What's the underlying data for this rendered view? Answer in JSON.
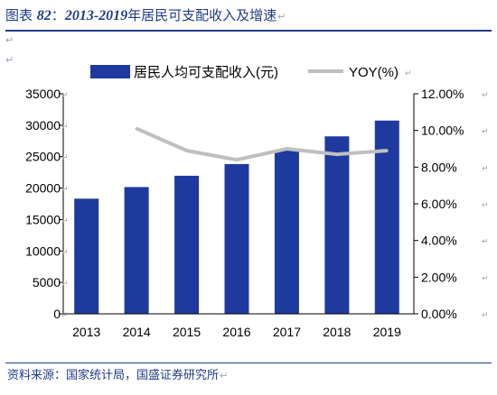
{
  "header": {
    "prefix": "图表",
    "number": "82",
    "separator": "：",
    "years": "2013-2019",
    "text": "年居民可支配收入及增速"
  },
  "footer": {
    "source": "资料来源：国家统计局，国盛证券研究所"
  },
  "paragraph_mark": "↵",
  "chart_data": {
    "type": "bar",
    "title": "",
    "categories": [
      "2013",
      "2014",
      "2015",
      "2016",
      "2017",
      "2018",
      "2019"
    ],
    "series": [
      {
        "name": "居民人均可支配收入(元)",
        "type": "bar",
        "axis": "left",
        "values": [
          18311,
          20167,
          21966,
          23821,
          25974,
          28228,
          30733
        ]
      },
      {
        "name": "YOY(%)",
        "type": "line",
        "axis": "right",
        "values": [
          null,
          10.1,
          8.9,
          8.4,
          9.0,
          8.7,
          8.9
        ]
      }
    ],
    "y_left": {
      "min": 0,
      "max": 35000,
      "ticks": [
        "0",
        "5000",
        "10000",
        "15000",
        "20000",
        "25000",
        "30000",
        "35000"
      ]
    },
    "y_right": {
      "min": 0,
      "max": 12,
      "ticks": [
        "0.00%",
        "2.00%",
        "4.00%",
        "6.00%",
        "8.00%",
        "10.00%",
        "12.00%"
      ]
    },
    "legend_position": "top",
    "grid": false,
    "colors": {
      "bar": "#1f3a9e",
      "line": "#bfbfbf",
      "axis": "#000000",
      "frame": "#1f3c88"
    }
  }
}
